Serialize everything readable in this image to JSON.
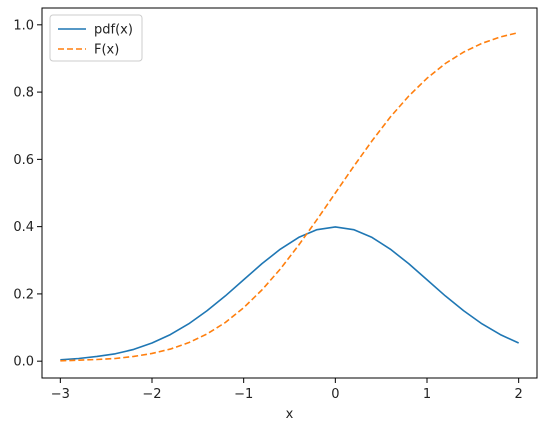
{
  "chart_data": {
    "type": "line",
    "title": "",
    "xlabel": "x",
    "ylabel": "",
    "xlim": [
      -3.2,
      2.2
    ],
    "ylim": [
      -0.05,
      1.05
    ],
    "x_ticks": [
      -3,
      -2,
      -1,
      0,
      1,
      2
    ],
    "x_tick_labels": [
      "−3",
      "−2",
      "−1",
      "0",
      "1",
      "2"
    ],
    "y_ticks": [
      0.0,
      0.2,
      0.4,
      0.6,
      0.8,
      1.0
    ],
    "y_tick_labels": [
      "0.0",
      "0.2",
      "0.4",
      "0.6",
      "0.8",
      "1.0"
    ],
    "grid": false,
    "legend_position": "top-left",
    "x": [
      -3.0,
      -2.8,
      -2.6,
      -2.4,
      -2.2,
      -2.0,
      -1.8,
      -1.6,
      -1.4,
      -1.2,
      -1.0,
      -0.8,
      -0.6,
      -0.4,
      -0.2,
      0.0,
      0.2,
      0.4,
      0.6,
      0.8,
      1.0,
      1.2,
      1.4,
      1.6,
      1.8,
      2.0
    ],
    "series": [
      {
        "name": "pdf(x)",
        "color": "#1f77b4",
        "style": "solid",
        "values": [
          0.004,
          0.008,
          0.014,
          0.022,
          0.035,
          0.054,
          0.079,
          0.111,
          0.15,
          0.194,
          0.242,
          0.29,
          0.333,
          0.368,
          0.391,
          0.399,
          0.391,
          0.368,
          0.333,
          0.29,
          0.242,
          0.194,
          0.15,
          0.111,
          0.079,
          0.054
        ]
      },
      {
        "name": "F(x)",
        "color": "#ff7f0e",
        "style": "dashed",
        "values": [
          0.001,
          0.003,
          0.005,
          0.008,
          0.014,
          0.023,
          0.036,
          0.055,
          0.081,
          0.115,
          0.159,
          0.212,
          0.274,
          0.345,
          0.421,
          0.5,
          0.579,
          0.655,
          0.726,
          0.788,
          0.841,
          0.885,
          0.919,
          0.945,
          0.964,
          0.977
        ]
      }
    ]
  }
}
